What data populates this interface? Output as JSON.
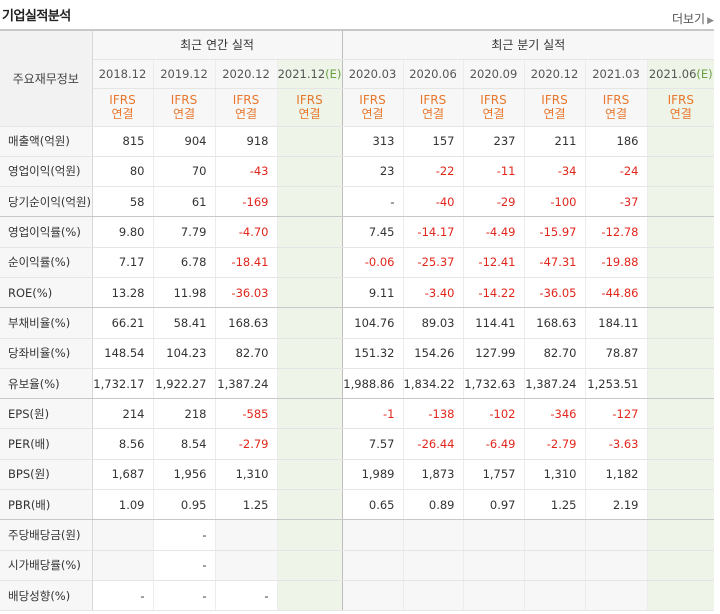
{
  "section_title": "기업실적분석",
  "more_label": "더보기",
  "header": {
    "row_label": "주요재무정보",
    "annual_group": "최근 연간 실적",
    "quarter_group": "최근 분기 실적",
    "ifrs_top": "IFRS",
    "ifrs_bottom": "연결",
    "annual_periods": [
      "2018.12",
      "2019.12",
      "2020.12",
      "2021.12"
    ],
    "annual_est_suffix": "(E)",
    "quarter_periods": [
      "2020.03",
      "2020.06",
      "2020.09",
      "2020.12",
      "2021.03",
      "2021.06"
    ],
    "quarter_est_suffix": "(E)"
  },
  "rows": [
    {
      "label": "매출액(억원)",
      "annual": [
        "815",
        "904",
        "918",
        ""
      ],
      "quarter": [
        "313",
        "157",
        "237",
        "211",
        "186",
        ""
      ]
    },
    {
      "label": "영업이익(억원)",
      "annual": [
        "80",
        "70",
        "-43",
        ""
      ],
      "quarter": [
        "23",
        "-22",
        "-11",
        "-34",
        "-24",
        ""
      ]
    },
    {
      "label": "당기순이익(억원)",
      "annual": [
        "58",
        "61",
        "-169",
        ""
      ],
      "quarter": [
        "-",
        "-40",
        "-29",
        "-100",
        "-37",
        ""
      ]
    },
    {
      "label": "영업이익률(%)",
      "annual": [
        "9.80",
        "7.79",
        "-4.70",
        ""
      ],
      "quarter": [
        "7.45",
        "-14.17",
        "-4.49",
        "-15.97",
        "-12.78",
        ""
      ]
    },
    {
      "label": "순이익률(%)",
      "annual": [
        "7.17",
        "6.78",
        "-18.41",
        ""
      ],
      "quarter": [
        "-0.06",
        "-25.37",
        "-12.41",
        "-47.31",
        "-19.88",
        ""
      ]
    },
    {
      "label": "ROE(%)",
      "annual": [
        "13.28",
        "11.98",
        "-36.03",
        ""
      ],
      "quarter": [
        "9.11",
        "-3.40",
        "-14.22",
        "-36.05",
        "-44.86",
        ""
      ]
    },
    {
      "label": "부채비율(%)",
      "annual": [
        "66.21",
        "58.41",
        "168.63",
        ""
      ],
      "quarter": [
        "104.76",
        "89.03",
        "114.41",
        "168.63",
        "184.11",
        ""
      ]
    },
    {
      "label": "당좌비율(%)",
      "annual": [
        "148.54",
        "104.23",
        "82.70",
        ""
      ],
      "quarter": [
        "151.32",
        "154.26",
        "127.99",
        "82.70",
        "78.87",
        ""
      ]
    },
    {
      "label": "유보율(%)",
      "annual": [
        "1,732.17",
        "1,922.27",
        "1,387.24",
        ""
      ],
      "quarter": [
        "1,988.86",
        "1,834.22",
        "1,732.63",
        "1,387.24",
        "1,253.51",
        ""
      ]
    },
    {
      "label": "EPS(원)",
      "annual": [
        "214",
        "218",
        "-585",
        ""
      ],
      "quarter": [
        "-1",
        "-138",
        "-102",
        "-346",
        "-127",
        ""
      ]
    },
    {
      "label": "PER(배)",
      "annual": [
        "8.56",
        "8.54",
        "-2.79",
        ""
      ],
      "quarter": [
        "7.57",
        "-26.44",
        "-6.49",
        "-2.79",
        "-3.63",
        ""
      ]
    },
    {
      "label": "BPS(원)",
      "annual": [
        "1,687",
        "1,956",
        "1,310",
        ""
      ],
      "quarter": [
        "1,989",
        "1,873",
        "1,757",
        "1,310",
        "1,182",
        ""
      ]
    },
    {
      "label": "PBR(배)",
      "annual": [
        "1.09",
        "0.95",
        "1.25",
        ""
      ],
      "quarter": [
        "0.65",
        "0.89",
        "0.97",
        "1.25",
        "2.19",
        ""
      ]
    },
    {
      "label": "주당배당금(원)",
      "annual": [
        "",
        "-",
        "",
        ""
      ],
      "quarter": [
        "",
        "",
        "",
        "",
        "",
        ""
      ]
    },
    {
      "label": "시가배당률(%)",
      "annual": [
        "",
        "-",
        "",
        ""
      ],
      "quarter": [
        "",
        "",
        "",
        "",
        "",
        ""
      ]
    },
    {
      "label": "배당성향(%)",
      "annual": [
        "-",
        "-",
        "-",
        ""
      ],
      "quarter": [
        "",
        "",
        "",
        "",
        "",
        ""
      ]
    }
  ],
  "colors": {
    "negative": "#e1261c",
    "ifrs": "#e7772c",
    "estimate_bg": "#eef5e8",
    "estimate_mark": "#6aa142"
  }
}
